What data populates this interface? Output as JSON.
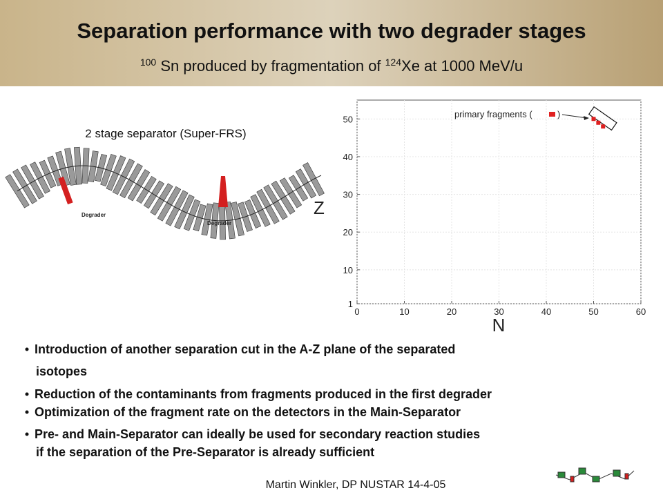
{
  "title": "Separation performance with two degrader stages",
  "subtitle": {
    "sup1": "100",
    "text1": " Sn produced by fragmentation of ",
    "sup2": "124",
    "text2": "Xe at 1000 MeV/u"
  },
  "diagram": {
    "label": "2 stage separator (Super-FRS)",
    "degrader_labels": [
      "Degrader",
      "Degrader"
    ]
  },
  "chart_data": {
    "type": "scatter",
    "xlabel": "N",
    "ylabel": "Z",
    "annotation": "primary fragments (",
    "annotation_end": ")",
    "x": [
      50,
      51,
      52
    ],
    "values": [
      50,
      49,
      48
    ],
    "color": "#e02020",
    "xlim": [
      0,
      60
    ],
    "ylim": [
      1,
      55
    ],
    "xticks": [
      0,
      10,
      20,
      30,
      40,
      50,
      60
    ],
    "yticks": [
      1,
      10,
      20,
      30,
      40,
      50
    ],
    "grid": true
  },
  "bullets": [
    [
      "Introduction of another separation cut in the A-Z plane of the separated",
      "isotopes"
    ],
    [
      "Reduction of the contaminants from fragments produced in the first degrader"
    ],
    [
      "Optimization of the fragment rate on the detectors in the Main-Separator"
    ],
    [
      "Pre-  and Main-Separator can ideally be used for secondary reaction studies",
      "if the separation of the Pre-Separator is already sufficient"
    ]
  ],
  "footer": "Martin Winkler, DP NUSTAR 14-4-05"
}
